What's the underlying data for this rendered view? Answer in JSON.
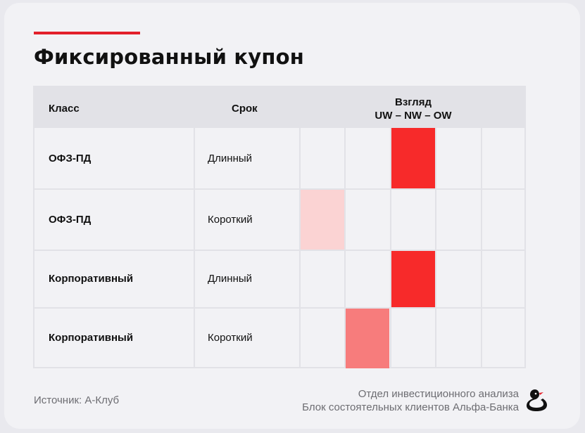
{
  "title": "Фиксированный купон",
  "colors": {
    "accent": "#e3202a",
    "strong": "#f72a2a",
    "medium": "#f77c7c",
    "light": "#fbd3d3"
  },
  "table": {
    "headers": {
      "class": "Класс",
      "term": "Срок",
      "view_line1": "Взгляд",
      "view_line2": "UW – NW – OW"
    },
    "rows": [
      {
        "class": "ОФЗ-ПД",
        "term": "Длинный",
        "view_position": 3,
        "intensity": "strong"
      },
      {
        "class": "ОФЗ-ПД",
        "term": "Короткий",
        "view_position": 1,
        "intensity": "light"
      },
      {
        "class": "Корпоративный",
        "term": "Длинный",
        "view_position": 3,
        "intensity": "strong"
      },
      {
        "class": "Корпоративный",
        "term": "Короткий",
        "view_position": 2,
        "intensity": "medium"
      }
    ]
  },
  "footer": {
    "source": "Источник: А-Клуб",
    "dept_line1": "Отдел инвестиционного анализа",
    "dept_line2": "Блок состоятельных клиентов Альфа-Банка",
    "logo_icon": "duck-icon"
  }
}
